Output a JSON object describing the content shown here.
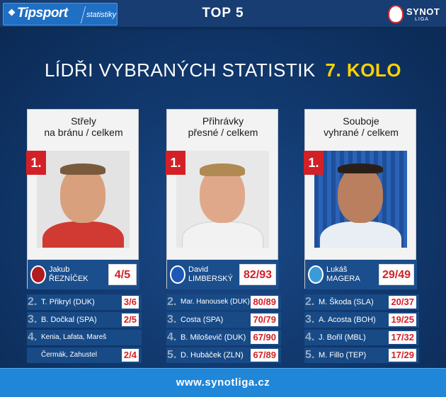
{
  "header": {
    "brand": "Tipsport",
    "brand_sub": "statistiky",
    "title": "TOP 5",
    "league_logo_word": "SYNOT",
    "league_logo_sub": "LIGA"
  },
  "headline": {
    "text": "LÍDŘI VYBRANÝCH STATISTIK",
    "round": "7. KOLO"
  },
  "columns": [
    {
      "title_line1": "Střely",
      "title_line2": "na bránu / celkem",
      "rank": "1.",
      "first_name": "Jakub",
      "last_name": "ŘEZNÍČEK",
      "score": "4/5",
      "club_color": "#b11b22",
      "rows": [
        {
          "num": "2.",
          "who": "T. Přikryl (DUK)",
          "val": "3/6"
        },
        {
          "num": "3.",
          "who": "B. Dočkal (SPA)",
          "val": "2/5"
        },
        {
          "num": "4.",
          "who": "Kenia, Lafata, Mareš",
          "val": ""
        },
        {
          "num": "",
          "who": "Čermák, Zahustel",
          "val": "2/4"
        }
      ]
    },
    {
      "title_line1": "Přihrávky",
      "title_line2": "přesné / celkem",
      "rank": "1.",
      "first_name": "David",
      "last_name": "LIMBERSKÝ",
      "score": "82/93",
      "club_color": "#1b58b8",
      "rows": [
        {
          "num": "2.",
          "who": "Mar. Hanousek (DUK)",
          "val": "80/89"
        },
        {
          "num": "3.",
          "who": "Costa (SPA)",
          "val": "70/79"
        },
        {
          "num": "4.",
          "who": "B. Miloševič (DUK)",
          "val": "67/90"
        },
        {
          "num": "5.",
          "who": "D. Hubáček (ZLN)",
          "val": "67/89"
        }
      ]
    },
    {
      "title_line1": "Souboje",
      "title_line2": "vyhrané / celkem",
      "rank": "1.",
      "first_name": "Lukáš",
      "last_name": "MAGERA",
      "score": "29/49",
      "club_color": "#3a9bd8",
      "rows": [
        {
          "num": "2.",
          "who": "M. Škoda (SLA)",
          "val": "20/37"
        },
        {
          "num": "3.",
          "who": "A. Acosta (BOH)",
          "val": "19/25"
        },
        {
          "num": "4.",
          "who": "J. Bořil (MBL)",
          "val": "17/32"
        },
        {
          "num": "5.",
          "who": "M. Fillo (TEP)",
          "val": "17/29"
        }
      ]
    }
  ],
  "footer": {
    "url": "www.synotliga.cz"
  },
  "colors": {
    "accent_red": "#d32027",
    "round_yellow": "#ffd200",
    "footer_blue": "#1f86d8"
  }
}
